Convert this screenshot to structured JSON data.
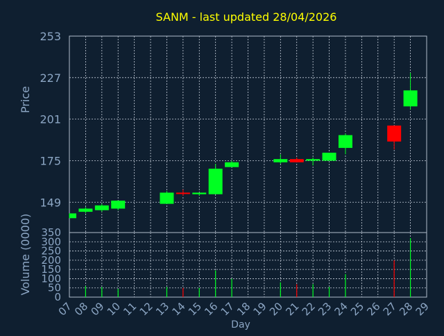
{
  "colors": {
    "background": "#0f1f30",
    "title": "#ffff00",
    "axis_text": "#8ca6c4",
    "frame": "#b0bccc",
    "grid": "#c8d0dc",
    "up": "#00ff22",
    "down": "#ff0000"
  },
  "chart_data": [
    {
      "type": "candlestick",
      "title": "SANM - last updated 28/04/2026",
      "ylabel": "Price",
      "ylim": [
        130,
        253
      ],
      "yticks": [
        149,
        175,
        201,
        227,
        253
      ],
      "grid": true,
      "candles": [
        {
          "day": 7,
          "open": 139,
          "close": 142,
          "high": 142,
          "low": 139,
          "direction": "up"
        },
        {
          "day": 8,
          "open": 143,
          "close": 145,
          "high": 146,
          "low": 142,
          "direction": "up"
        },
        {
          "day": 9,
          "open": 144,
          "close": 147,
          "high": 148,
          "low": 143,
          "direction": "up"
        },
        {
          "day": 10,
          "open": 145,
          "close": 150,
          "high": 150,
          "low": 144,
          "direction": "up"
        },
        {
          "day": 13,
          "open": 148,
          "close": 155,
          "high": 156,
          "low": 148,
          "direction": "up"
        },
        {
          "day": 14,
          "open": 155,
          "close": 155,
          "high": 157,
          "low": 153,
          "direction": "down"
        },
        {
          "day": 15,
          "open": 154,
          "close": 155,
          "high": 155,
          "low": 153,
          "direction": "up"
        },
        {
          "day": 16,
          "open": 154,
          "close": 170,
          "high": 173,
          "low": 154,
          "direction": "up"
        },
        {
          "day": 17,
          "open": 171,
          "close": 174,
          "high": 175,
          "low": 171,
          "direction": "up"
        },
        {
          "day": 20,
          "open": 174,
          "close": 176,
          "high": 179,
          "low": 173,
          "direction": "up"
        },
        {
          "day": 21,
          "open": 176,
          "close": 174,
          "high": 177,
          "low": 174,
          "direction": "down"
        },
        {
          "day": 22,
          "open": 175,
          "close": 176,
          "high": 177,
          "low": 172,
          "direction": "up"
        },
        {
          "day": 23,
          "open": 175,
          "close": 180,
          "high": 180,
          "low": 175,
          "direction": "up"
        },
        {
          "day": 24,
          "open": 183,
          "close": 191,
          "high": 192,
          "low": 179,
          "direction": "up"
        },
        {
          "day": 27,
          "open": 197,
          "close": 187,
          "high": 197,
          "low": 182,
          "direction": "down"
        },
        {
          "day": 28,
          "open": 209,
          "close": 219,
          "high": 230,
          "low": 207,
          "direction": "up"
        }
      ]
    },
    {
      "type": "bar",
      "ylabel": "Volume (0000)",
      "xlabel": "Day",
      "ylim": [
        0,
        350
      ],
      "yticks": [
        0,
        50,
        100,
        150,
        200,
        250,
        300,
        350
      ],
      "grid": true,
      "categories": [
        "07",
        "08",
        "09",
        "10",
        "11",
        "12",
        "13",
        "14",
        "15",
        "16",
        "17",
        "18",
        "19",
        "20",
        "21",
        "22",
        "23",
        "24",
        "25",
        "26",
        "27",
        "28",
        "29"
      ],
      "values": [
        {
          "day": 7,
          "value": 0,
          "direction": "up"
        },
        {
          "day": 8,
          "value": 60,
          "direction": "up"
        },
        {
          "day": 9,
          "value": 55,
          "direction": "up"
        },
        {
          "day": 10,
          "value": 45,
          "direction": "up"
        },
        {
          "day": 13,
          "value": 55,
          "direction": "up"
        },
        {
          "day": 14,
          "value": 50,
          "direction": "down"
        },
        {
          "day": 15,
          "value": 50,
          "direction": "up"
        },
        {
          "day": 16,
          "value": 145,
          "direction": "up"
        },
        {
          "day": 17,
          "value": 100,
          "direction": "up"
        },
        {
          "day": 20,
          "value": 80,
          "direction": "up"
        },
        {
          "day": 21,
          "value": 70,
          "direction": "down"
        },
        {
          "day": 22,
          "value": 70,
          "direction": "up"
        },
        {
          "day": 23,
          "value": 55,
          "direction": "up"
        },
        {
          "day": 24,
          "value": 125,
          "direction": "up"
        },
        {
          "day": 27,
          "value": 200,
          "direction": "down"
        },
        {
          "day": 28,
          "value": 320,
          "direction": "up"
        }
      ]
    }
  ]
}
